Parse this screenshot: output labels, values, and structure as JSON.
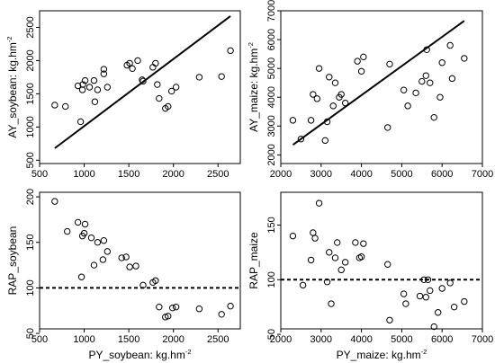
{
  "chart_data": [
    {
      "type": "scatter",
      "xlabel": "",
      "ylabel": "AY_soybean: kg.hm",
      "ylabel_sup": "-2",
      "xlim": [
        500,
        2750
      ],
      "ylim": [
        450,
        2750
      ],
      "xticks": [
        "500",
        "1000",
        "1500",
        "2000",
        "2500"
      ],
      "yticks": [
        "500",
        "1000",
        "1500",
        "2000",
        "2500"
      ],
      "xtick_values": [
        500,
        1000,
        1500,
        2000,
        2500
      ],
      "ytick_values": [
        500,
        1000,
        1500,
        2000,
        2500
      ],
      "points": {
        "x": [
          670,
          790,
          930,
          960,
          980,
          985,
          1010,
          1060,
          1110,
          1120,
          1150,
          1220,
          1220,
          1260,
          1480,
          1510,
          1540,
          1600,
          1650,
          1660,
          1770,
          1800,
          1820,
          1840,
          1910,
          1940,
          1980,
          2030,
          2290,
          2540,
          2640
        ],
        "y": [
          1330,
          1310,
          1620,
          1080,
          1560,
          1640,
          1700,
          1600,
          1700,
          1380,
          1560,
          1800,
          1870,
          1600,
          1930,
          1960,
          1880,
          2000,
          1710,
          1690,
          1900,
          1960,
          1640,
          1430,
          1280,
          1310,
          1540,
          1600,
          1750,
          1760,
          2150
        ]
      },
      "line": {
        "x": [
          670,
          2640
        ],
        "y": [
          680,
          2670
        ]
      }
    },
    {
      "type": "scatter",
      "xlabel": "",
      "ylabel": "AY_maize: kg.hm",
      "ylabel_sup": "-2",
      "xlim": [
        2000,
        7000
      ],
      "ylim": [
        1700,
        7000
      ],
      "xticks": [
        "2000",
        "3000",
        "4000",
        "5000",
        "6000",
        "7000"
      ],
      "yticks": [
        "2000",
        "3000",
        "4000",
        "5000",
        "6000",
        "7000"
      ],
      "xtick_values": [
        2000,
        3000,
        4000,
        5000,
        6000,
        7000
      ],
      "ytick_values": [
        2000,
        3000,
        4000,
        5000,
        6000,
        7000
      ],
      "points": {
        "x": [
          2300,
          2500,
          2750,
          2800,
          2900,
          2950,
          3100,
          3150,
          3200,
          3300,
          3350,
          3450,
          3500,
          3600,
          3900,
          4000,
          4050,
          4650,
          4700,
          5050,
          5150,
          5350,
          5500,
          5600,
          5620,
          5700,
          5800,
          5950,
          6000,
          6200,
          6250,
          6550
        ],
        "y": [
          3200,
          2550,
          3200,
          4100,
          3950,
          5000,
          2500,
          3150,
          4700,
          3700,
          4500,
          4000,
          4100,
          3800,
          5250,
          4900,
          5400,
          2950,
          5150,
          4250,
          3700,
          4150,
          4550,
          4750,
          5650,
          4500,
          3300,
          4000,
          5200,
          5800,
          4650,
          5350
        ]
      },
      "line": {
        "x": [
          2300,
          6550
        ],
        "y": [
          2350,
          6650
        ]
      }
    },
    {
      "type": "scatter",
      "xlabel": "PY_soybean: kg.hm",
      "xlabel_sup": "-2",
      "ylabel": "RAP_soybean",
      "xlim": [
        500,
        2750
      ],
      "ylim": [
        55,
        205
      ],
      "xticks": [
        "500",
        "1000",
        "1500",
        "2000",
        "2500"
      ],
      "yticks": [
        "50",
        "100",
        "150",
        "200"
      ],
      "xtick_values": [
        500,
        1000,
        1500,
        2000,
        2500
      ],
      "ytick_values": [
        50,
        100,
        150,
        200
      ],
      "points": {
        "x": [
          670,
          810,
          930,
          970,
          980,
          1000,
          1010,
          1080,
          1110,
          1150,
          1210,
          1220,
          1260,
          1420,
          1470,
          1510,
          1580,
          1660,
          1770,
          1800,
          1840,
          1910,
          1940,
          1990,
          2030,
          2290,
          2540,
          2640
        ],
        "y": [
          195,
          162,
          172,
          112,
          157,
          160,
          170,
          155,
          125,
          150,
          131,
          152,
          140,
          133,
          134,
          123,
          124,
          103,
          106,
          108,
          79,
          68,
          69,
          78,
          79,
          77,
          71,
          80
        ]
      },
      "reference_line": {
        "y": 100,
        "style": "dashed"
      }
    },
    {
      "type": "scatter",
      "xlabel": "PY_maize: kg.hm",
      "xlabel_sup": "-2",
      "ylabel": "RAP_maize",
      "xlim": [
        2000,
        7000
      ],
      "ylim": [
        55,
        180
      ],
      "xticks": [
        "2000",
        "3000",
        "4000",
        "5000",
        "6000",
        "7000"
      ],
      "yticks": [
        "50",
        "100",
        "150"
      ],
      "xtick_values": [
        2000,
        3000,
        4000,
        5000,
        6000,
        7000
      ],
      "ytick_values": [
        50,
        100,
        150
      ],
      "points": {
        "x": [
          2300,
          2550,
          2750,
          2800,
          2850,
          2950,
          3150,
          3200,
          3250,
          3350,
          3400,
          3500,
          3600,
          3850,
          3950,
          4000,
          4050,
          4650,
          4700,
          5050,
          5100,
          5450,
          5550,
          5600,
          5650,
          5700,
          5800,
          5900,
          6000,
          6200,
          6300,
          6550
        ],
        "y": [
          140,
          95,
          118,
          143,
          138,
          170,
          98,
          125,
          78,
          120,
          134,
          109,
          116,
          134,
          120,
          121,
          133,
          114,
          63,
          87,
          78,
          85,
          100,
          84,
          100,
          90,
          57,
          70,
          92,
          97,
          75,
          80
        ]
      },
      "reference_line": {
        "y": 100,
        "style": "dashed"
      }
    }
  ]
}
